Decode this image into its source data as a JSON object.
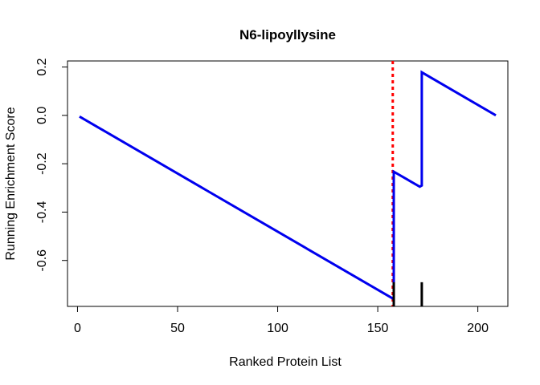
{
  "chart_data": {
    "type": "line",
    "title": "N6-lipoyllysine",
    "xlabel": "Ranked Protein List",
    "ylabel": "Running Enrichment Score",
    "xlim": [
      -5,
      215
    ],
    "ylim": [
      -0.79,
      0.225
    ],
    "x_ticks": [
      0,
      50,
      100,
      150,
      200
    ],
    "y_ticks": [
      -0.6,
      -0.4,
      -0.2,
      0.0,
      0.2
    ],
    "x_tick_labels": [
      "0",
      "50",
      "100",
      "150",
      "200"
    ],
    "y_tick_labels": [
      "-0.6",
      "-0.4",
      "-0.2",
      "0.0",
      "0.2"
    ],
    "series": [
      {
        "color": "#0000ee",
        "x": [
          1,
          157,
          158,
          158,
          171,
          172,
          172,
          209
        ],
        "y": [
          -0.005,
          -0.755,
          -0.76,
          -0.233,
          -0.295,
          -0.29,
          0.178,
          0.0
        ]
      }
    ],
    "hit_positions": [
      158,
      172
    ],
    "max_deviation_x": 157.5,
    "max_deviation_color": "#ff0000",
    "grid": false,
    "legend": "none"
  }
}
